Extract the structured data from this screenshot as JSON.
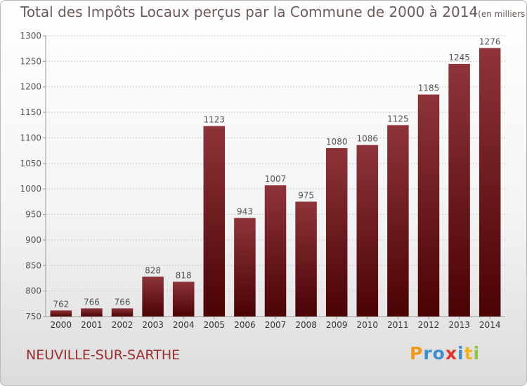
{
  "header": {
    "title": "Total des Impôts Locaux perçus par la Commune de 2000 à 2014",
    "unit": "(en milliers d'€)"
  },
  "footer": {
    "commune": "NEUVILLE-SUR-SARTHE",
    "logo": {
      "letters": [
        "P",
        "r",
        "o",
        "x",
        "i",
        "t",
        "i"
      ],
      "colors": [
        "#f39a1b",
        "#3c8fd0",
        "#3c8fd0",
        "#e63227",
        "#3c8fd0",
        "#f0b419",
        "#8cc63f"
      ]
    }
  },
  "chart_data": {
    "type": "bar",
    "title": "Total des Impôts Locaux perçus par la Commune de 2000 à 2014",
    "xlabel": "",
    "ylabel": "",
    "categories": [
      "2000",
      "2001",
      "2002",
      "2003",
      "2004",
      "2005",
      "2006",
      "2007",
      "2008",
      "2009",
      "2010",
      "2011",
      "2012",
      "2013",
      "2014"
    ],
    "values": [
      762,
      766,
      766,
      828,
      818,
      1123,
      943,
      1007,
      975,
      1080,
      1086,
      1125,
      1185,
      1245,
      1276
    ],
    "ylim": [
      750,
      1300
    ],
    "yticks": [
      750,
      800,
      850,
      900,
      950,
      1000,
      1050,
      1100,
      1150,
      1200,
      1250,
      1300
    ],
    "grid": true,
    "bar_color": "#7a1a1f"
  }
}
